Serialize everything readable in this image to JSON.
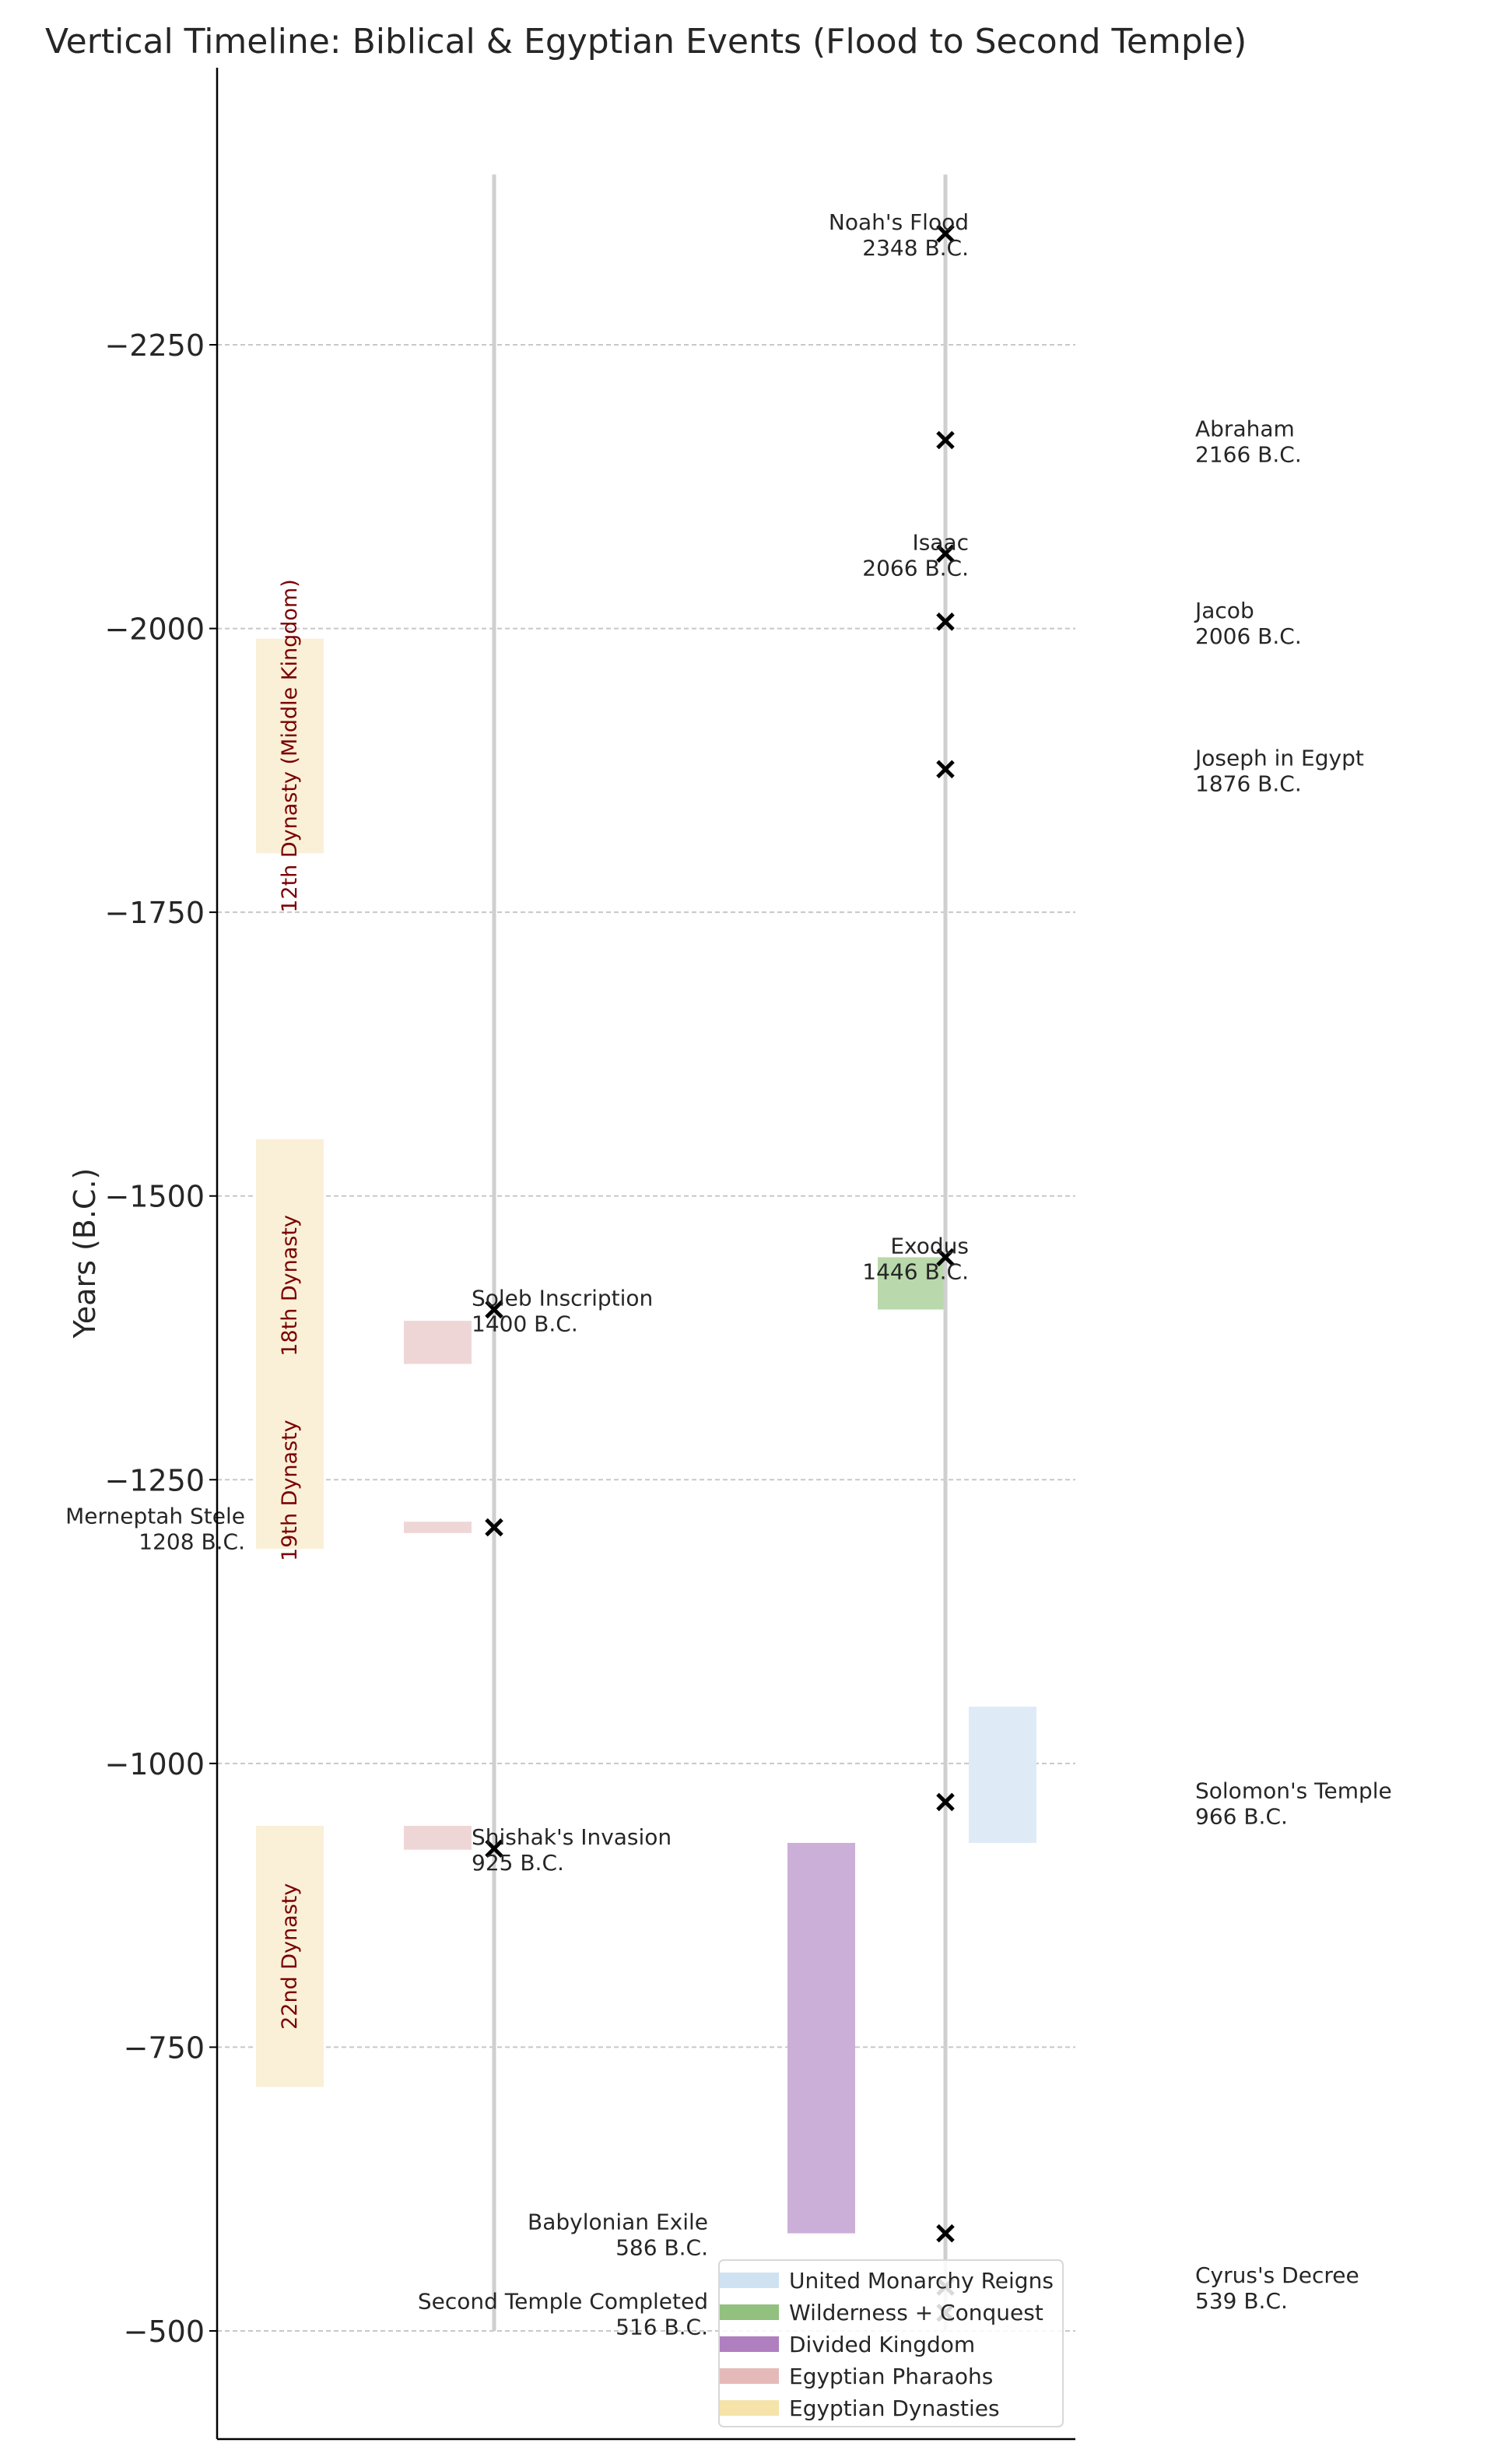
{
  "chart_data": {
    "type": "timeline",
    "title": "Vertical Timeline: Biblical & Egyptian Events (Flood to Second Temple)",
    "ylabel": "Years (B.C.)",
    "ylim": [
      -405,
      -2494
    ],
    "y_inverted": true,
    "yticks": [
      -2250,
      -2000,
      -1750,
      -1500,
      -1250,
      -1000,
      -750,
      -500
    ],
    "ytick_labels": [
      "−2250",
      "−2000",
      "−1750",
      "−1500",
      "−1250",
      "−1000",
      "−750",
      "−500"
    ],
    "grid": "horizontal dashed",
    "timeline_span": [
      2400,
      500
    ],
    "legend_position": "lower-right",
    "legend": [
      {
        "label": "United Monarchy Reigns",
        "color": "#cfe2f2"
      },
      {
        "label": "Wilderness + Conquest",
        "color": "#92c07e"
      },
      {
        "label": "Divided Kingdom",
        "color": "#af7fc0"
      },
      {
        "label": "Egyptian Pharaohs",
        "color": "#e6b9b9"
      },
      {
        "label": "Egyptian Dynasties",
        "color": "#f5e3a9"
      }
    ],
    "dynasties": [
      {
        "label": "12th Dynasty (Middle Kingdom)",
        "start": 1991,
        "end": 1802
      },
      {
        "label": "18th Dynasty",
        "start": 1550,
        "end": 1292
      },
      {
        "label": "19th Dynasty",
        "start": 1292,
        "end": 1189
      },
      {
        "label": "22nd Dynasty",
        "start": 945,
        "end": 715
      }
    ],
    "dynasty_label_color": "#7a0000",
    "pharaohs": [
      {
        "start": 1390,
        "end": 1352
      },
      {
        "start": 1213,
        "end": 1203
      },
      {
        "start": 945,
        "end": 924
      }
    ],
    "periods": [
      {
        "series": "Divided Kingdom",
        "start": 930,
        "end": 586
      },
      {
        "series": "Wilderness + Conquest",
        "start": 1446,
        "end": 1400
      },
      {
        "series": "United Monarchy Reigns",
        "start": 1050,
        "end": 930
      }
    ],
    "biblical_events": [
      {
        "name": "Noah's Flood",
        "year": 2348,
        "date_label": "2348 B.C.",
        "side": "left"
      },
      {
        "name": "Abraham",
        "year": 2166,
        "date_label": "2166 B.C.",
        "side": "right"
      },
      {
        "name": "Isaac",
        "year": 2066,
        "date_label": "2066 B.C.",
        "side": "left"
      },
      {
        "name": "Jacob",
        "year": 2006,
        "date_label": "2006 B.C.",
        "side": "right"
      },
      {
        "name": "Joseph in Egypt",
        "year": 1876,
        "date_label": "1876 B.C.",
        "side": "right"
      },
      {
        "name": "Exodus",
        "year": 1446,
        "date_label": "1446 B.C.",
        "side": "left"
      },
      {
        "name": "Solomon's Temple",
        "year": 966,
        "date_label": "966 B.C.",
        "side": "right"
      },
      {
        "name": "Babylonian Exile",
        "year": 586,
        "date_label": "586 B.C.",
        "side": "left"
      },
      {
        "name": "Cyrus's Decree",
        "year": 539,
        "date_label": "539 B.C.",
        "side": "right"
      },
      {
        "name": "Second Temple Completed",
        "year": 516,
        "date_label": "516 B.C.",
        "side": "left"
      }
    ],
    "egyptian_events": [
      {
        "name": "Soleb Inscription",
        "year": 1400,
        "date_label": "1400 B.C.",
        "side": "right"
      },
      {
        "name": "Merneptah Stele",
        "year": 1208,
        "date_label": "1208 B.C.",
        "side": "far-left"
      },
      {
        "name": "Shishak's Invasion",
        "year": 925,
        "date_label": "925 B.C.",
        "side": "right"
      }
    ]
  }
}
